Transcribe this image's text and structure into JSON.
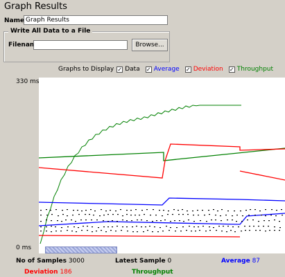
{
  "header": {
    "title": "Graph Results"
  },
  "name_field": {
    "label": "Name:",
    "value": "Graph Results"
  },
  "file_panel": {
    "legend": "Write All Data to a File",
    "filename_label": "Filename",
    "filename_value": "",
    "browse_label": "Browse..."
  },
  "toggles": {
    "graphs_label": "Graphs to Display",
    "items": [
      {
        "label": "Data",
        "checked": true,
        "color": "#000000"
      },
      {
        "label": "Average",
        "checked": true,
        "color": "#0000ff"
      },
      {
        "label": "Deviation",
        "checked": true,
        "color": "#ff0000"
      },
      {
        "label": "Throughput",
        "checked": true,
        "color": "#008000"
      }
    ]
  },
  "axis": {
    "y_max": "330 ms",
    "y_min": "0 ms"
  },
  "stats": {
    "samples_label": "No of Samples",
    "samples_value": "3000",
    "latest_label": "Latest Sample",
    "latest_value": "0",
    "average_label": "Average",
    "average_value": "87",
    "deviation_label": "Deviation",
    "deviation_value": "186",
    "throughput_label": "Throughput",
    "throughput_value": ""
  },
  "colors": {
    "data": "#000000",
    "average": "#0000ff",
    "deviation": "#ff0000",
    "throughput": "#008000",
    "scroll": "#9aa6d8"
  }
}
